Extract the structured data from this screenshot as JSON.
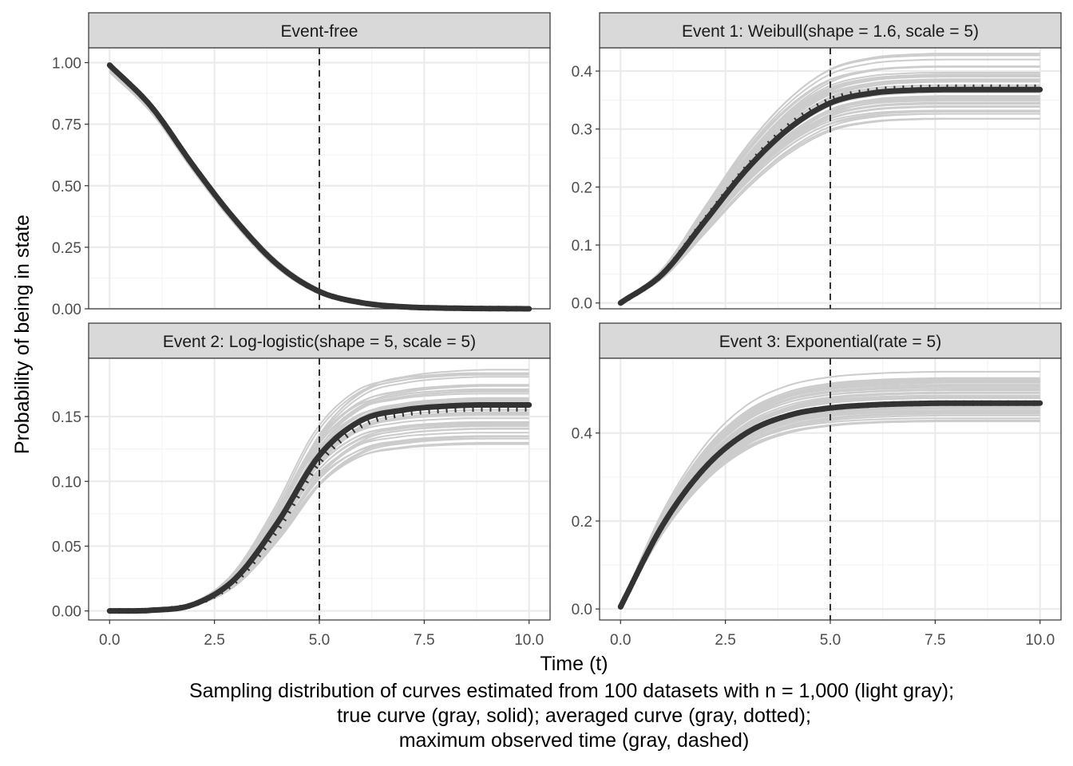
{
  "chart_data": {
    "type": "line",
    "ylabel": "Probability of being in state",
    "xlabel": "Time (t)",
    "caption": [
      "Sampling distribution of curves estimated from 100 datasets with n = 1,000 (light gray);",
      "true curve (gray, solid); averaged curve (gray, dotted);",
      "maximum observed time (gray, dashed)"
    ],
    "x_ticks": [
      "0.0",
      "2.5",
      "5.0",
      "7.5",
      "10.0"
    ],
    "xlim": [
      0,
      10
    ],
    "max_observed_time": 5,
    "sample_count": 100,
    "colors": {
      "samples": "#cccccc",
      "true": "#333333",
      "average": "#333333",
      "reference": "#333333"
    },
    "panels": [
      {
        "title": "Event-free",
        "ylim": [
          0,
          1.06
        ],
        "y_ticks": [
          0,
          0.25,
          0.5,
          0.75,
          1.0
        ],
        "y_tick_labels": [
          "0.00",
          "0.25",
          "0.50",
          "0.75",
          "1.00"
        ],
        "x": [
          0,
          1,
          2,
          3,
          4,
          5,
          6,
          7,
          8,
          9,
          10
        ],
        "true": [
          0.99,
          0.82,
          0.58,
          0.36,
          0.18,
          0.07,
          0.025,
          0.008,
          0.003,
          0.001,
          0.0
        ],
        "average": [
          0.99,
          0.82,
          0.58,
          0.36,
          0.18,
          0.07,
          0.025,
          0.008,
          0.003,
          0.001,
          0.0
        ],
        "sample_band": [
          0.97,
          1.01
        ]
      },
      {
        "title": "Event 1: Weibull(shape = 1.6, scale = 5)",
        "ylim": [
          -0.01,
          0.44
        ],
        "y_ticks": [
          0,
          0.1,
          0.2,
          0.3,
          0.4
        ],
        "y_tick_labels": [
          "0.0",
          "0.1",
          "0.2",
          "0.3",
          "0.4"
        ],
        "x": [
          0,
          1,
          2,
          3,
          4,
          5,
          6,
          7,
          8,
          9,
          10
        ],
        "true": [
          0.0,
          0.05,
          0.14,
          0.23,
          0.3,
          0.345,
          0.362,
          0.367,
          0.368,
          0.368,
          0.368
        ],
        "average": [
          0.0,
          0.05,
          0.142,
          0.233,
          0.305,
          0.35,
          0.366,
          0.371,
          0.372,
          0.372,
          0.372
        ],
        "sample_band": [
          0.86,
          1.17
        ]
      },
      {
        "title": "Event 2: Log-logistic(shape = 5, scale = 5)",
        "ylim": [
          -0.007,
          0.195
        ],
        "y_ticks": [
          0,
          0.05,
          0.1,
          0.15
        ],
        "y_tick_labels": [
          "0.00",
          "0.05",
          "0.10",
          "0.15"
        ],
        "x": [
          0,
          1,
          2,
          3,
          4,
          5,
          6,
          7,
          8,
          9,
          10
        ],
        "true": [
          0.0,
          0.0005,
          0.005,
          0.025,
          0.068,
          0.12,
          0.147,
          0.155,
          0.158,
          0.159,
          0.159
        ],
        "average": [
          0.0,
          0.0005,
          0.005,
          0.023,
          0.063,
          0.115,
          0.143,
          0.152,
          0.155,
          0.156,
          0.156
        ],
        "sample_band": [
          0.8,
          1.18
        ]
      },
      {
        "title": "Event 3: Exponential(rate = 5)",
        "ylim": [
          -0.025,
          0.57
        ],
        "y_ticks": [
          0,
          0.2,
          0.4
        ],
        "y_tick_labels": [
          "0.0",
          "0.2",
          "0.4"
        ],
        "x": [
          0,
          1,
          2,
          3,
          4,
          5,
          6,
          7,
          8,
          9,
          10
        ],
        "true": [
          0.005,
          0.19,
          0.32,
          0.4,
          0.44,
          0.457,
          0.464,
          0.467,
          0.468,
          0.468,
          0.468
        ],
        "average": [
          0.005,
          0.19,
          0.32,
          0.4,
          0.44,
          0.457,
          0.464,
          0.467,
          0.468,
          0.468,
          0.468
        ],
        "sample_band": [
          0.9,
          1.16
        ]
      }
    ]
  }
}
